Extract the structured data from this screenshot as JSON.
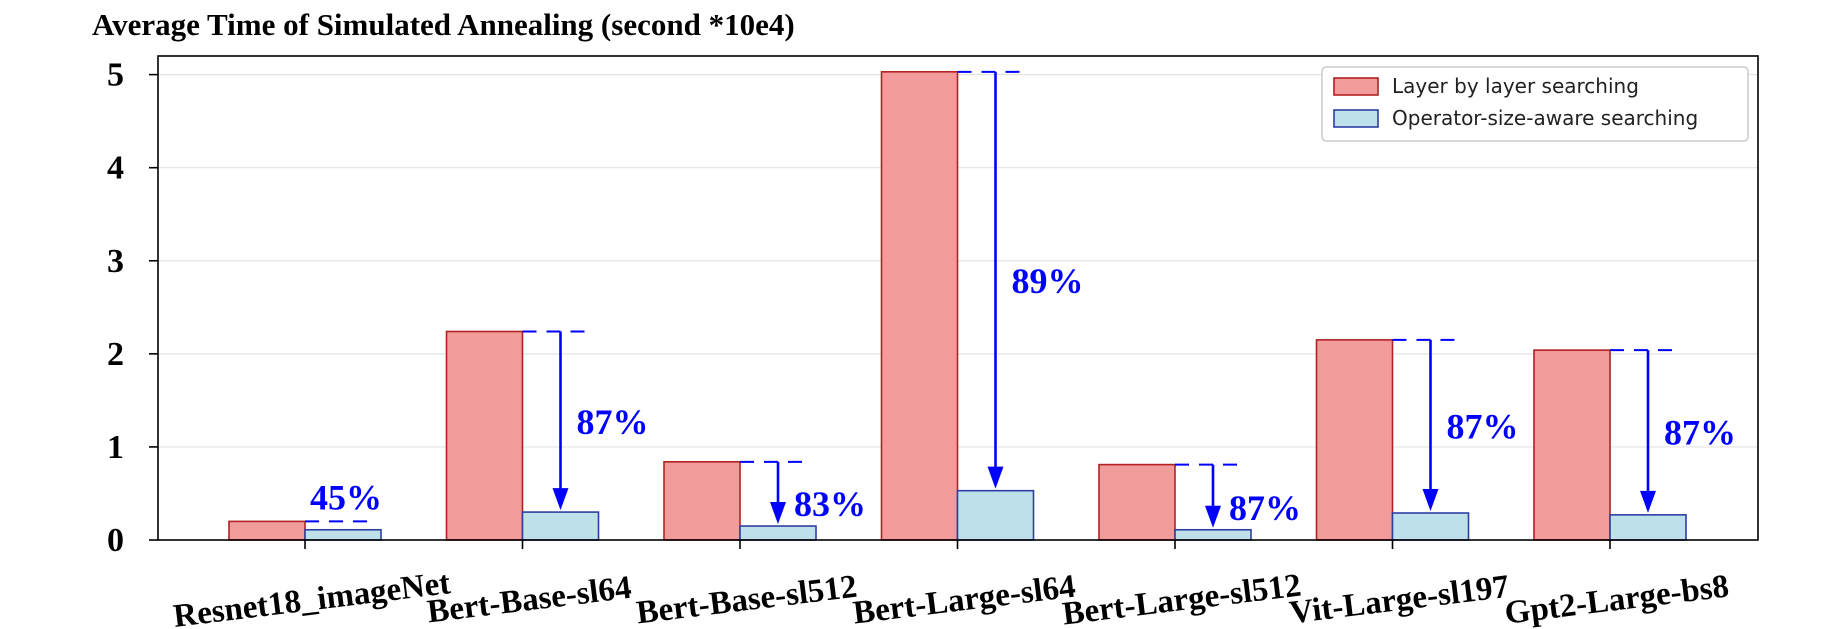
{
  "chart_data": {
    "type": "bar",
    "title": "Average Time of Simulated Annealing (second *10e4)",
    "xlabel": "",
    "ylabel": "",
    "ylim": [
      0,
      5.2
    ],
    "yticks": [
      "0",
      "1",
      "2",
      "3",
      "4",
      "5"
    ],
    "grid": "horizontal",
    "legend_position": "top-right",
    "categories": [
      "Resnet18_imageNet",
      "Bert-Base-sl64",
      "Bert-Base-sl512",
      "Bert-Large-sl64",
      "Bert-Large-sl512",
      "Vit-Large-sl197",
      "Gpt2-Large-bs8"
    ],
    "series": [
      {
        "name": "Layer by layer searching",
        "values": [
          0.2,
          2.24,
          0.84,
          5.03,
          0.81,
          2.15,
          2.04
        ],
        "color": "#f29b9b",
        "edge": "#b22222"
      },
      {
        "name": "Operator-size-aware searching",
        "values": [
          0.11,
          0.3,
          0.15,
          0.53,
          0.11,
          0.29,
          0.27
        ],
        "color": "#bde0eb",
        "edge": "#2e3fa3"
      }
    ],
    "annotations": [
      "45%",
      "87%",
      "83%",
      "89%",
      "87%",
      "87%",
      "87%"
    ],
    "annotation_color": "#0000ff"
  }
}
